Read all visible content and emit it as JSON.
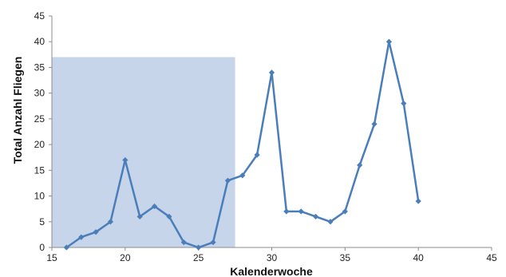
{
  "chart_data": {
    "type": "line",
    "xlabel": "Kalenderwoche",
    "ylabel": "Total Anzahl Fliegen",
    "xlim": [
      15,
      45
    ],
    "ylim": [
      0,
      45
    ],
    "xticks": [
      15,
      20,
      25,
      30,
      35,
      40,
      45
    ],
    "yticks": [
      0,
      5,
      10,
      15,
      20,
      25,
      30,
      35,
      40,
      45
    ],
    "grid": false,
    "legend": "none",
    "shaded_region": {
      "x_range": [
        15,
        27.5
      ],
      "y_range": [
        0,
        37
      ],
      "color": "#c6d5e9"
    },
    "series": [
      {
        "color": "#4a7ebb",
        "marker": "diamond",
        "x": [
          16,
          17,
          18,
          19,
          20,
          21,
          22,
          23,
          24,
          25,
          26,
          27,
          28,
          29,
          30,
          31,
          32,
          33,
          34,
          35,
          36,
          37,
          38,
          39,
          40
        ],
        "y": [
          0,
          2,
          3,
          5,
          17,
          6,
          8,
          6,
          1,
          0,
          1,
          13,
          14,
          18,
          34,
          7,
          7,
          6,
          5,
          7,
          16,
          24,
          40,
          28,
          9
        ]
      }
    ]
  }
}
